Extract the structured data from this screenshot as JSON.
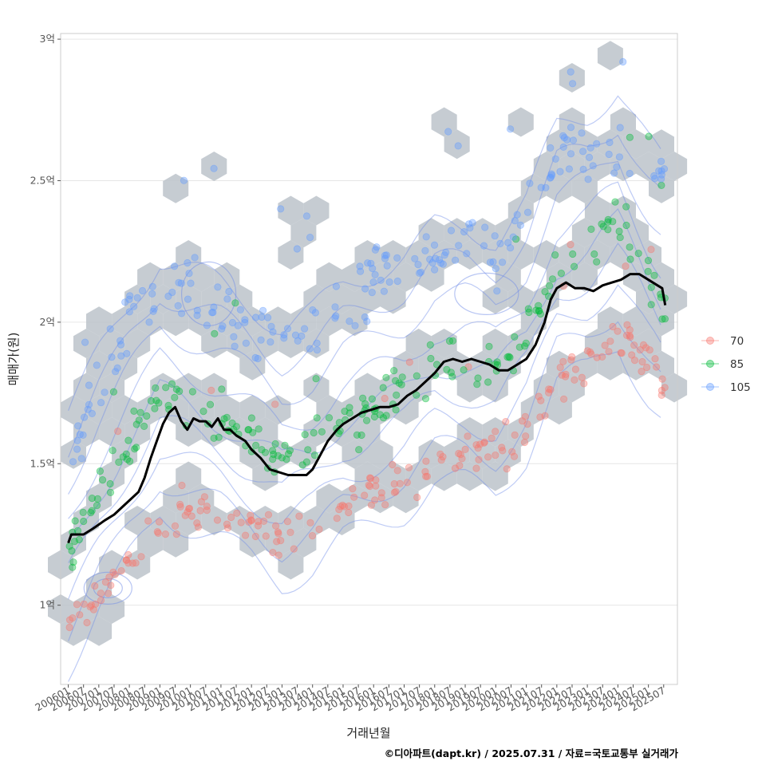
{
  "chart_data": {
    "type": "scatter",
    "title": "",
    "xlabel": "거래년월",
    "ylabel": "매매가(원)",
    "caption": "©디아파트(dapt.kr) / 2025.07.31 / 자료=국토교통부 실거래가",
    "x_tick_labels": [
      "200601",
      "200607",
      "200701",
      "200707",
      "200801",
      "200807",
      "200901",
      "200907",
      "201001",
      "201007",
      "201101",
      "201107",
      "201201",
      "201207",
      "201301",
      "201307",
      "201401",
      "201407",
      "201501",
      "201507",
      "201601",
      "201607",
      "201701",
      "201707",
      "201801",
      "201807",
      "201901",
      "201907",
      "202001",
      "202007",
      "202101",
      "202107",
      "202201",
      "202207",
      "202301",
      "202307",
      "202401",
      "202407",
      "202501",
      "202507"
    ],
    "x_range_years": [
      2005.75,
      2025.95
    ],
    "y_ticks": [
      {
        "value": 1.0,
        "label": "1억"
      },
      {
        "value": 1.5,
        "label": "1.5억"
      },
      {
        "value": 2.0,
        "label": "2억"
      },
      {
        "value": 2.5,
        "label": "2.5억"
      },
      {
        "value": 3.0,
        "label": "3억"
      }
    ],
    "y_range": [
      0.72,
      3.02
    ],
    "y_unit": "억원",
    "legend": {
      "position": "right",
      "entries": [
        {
          "label": "70",
          "color": "#F8766D"
        },
        {
          "label": "85",
          "color": "#00BA38"
        },
        {
          "label": "105",
          "color": "#619CFF"
        }
      ]
    },
    "series": [
      {
        "name": "70",
        "color": "#F8766D",
        "trend": [
          [
            2006.0,
            0.95
          ],
          [
            2007.0,
            1.0
          ],
          [
            2008.0,
            1.18
          ],
          [
            2009.0,
            1.3
          ],
          [
            2010.0,
            1.35
          ],
          [
            2011.0,
            1.33
          ],
          [
            2012.0,
            1.28
          ],
          [
            2013.0,
            1.22
          ],
          [
            2014.0,
            1.25
          ],
          [
            2015.0,
            1.35
          ],
          [
            2016.0,
            1.42
          ],
          [
            2017.0,
            1.45
          ],
          [
            2018.0,
            1.5
          ],
          [
            2019.0,
            1.52
          ],
          [
            2020.0,
            1.55
          ],
          [
            2021.0,
            1.6
          ],
          [
            2022.0,
            1.8
          ],
          [
            2023.0,
            1.85
          ],
          [
            2024.0,
            1.95
          ],
          [
            2025.0,
            1.88
          ],
          [
            2025.6,
            1.75
          ]
        ],
        "spread": 0.08
      },
      {
        "name": "85",
        "color": "#00BA38",
        "trend": [
          [
            2006.0,
            1.2
          ],
          [
            2007.0,
            1.4
          ],
          [
            2008.0,
            1.58
          ],
          [
            2009.0,
            1.75
          ],
          [
            2010.0,
            1.7
          ],
          [
            2011.0,
            1.65
          ],
          [
            2012.0,
            1.58
          ],
          [
            2013.0,
            1.5
          ],
          [
            2014.0,
            1.55
          ],
          [
            2015.0,
            1.65
          ],
          [
            2016.0,
            1.7
          ],
          [
            2017.0,
            1.75
          ],
          [
            2018.0,
            1.85
          ],
          [
            2019.0,
            1.85
          ],
          [
            2020.0,
            1.82
          ],
          [
            2021.0,
            1.95
          ],
          [
            2022.0,
            2.2
          ],
          [
            2023.0,
            2.25
          ],
          [
            2024.0,
            2.35
          ],
          [
            2025.0,
            2.15
          ],
          [
            2025.6,
            2.05
          ]
        ],
        "spread": 0.09
      },
      {
        "name": "105",
        "color": "#619CFF",
        "trend": [
          [
            2006.0,
            1.5
          ],
          [
            2007.0,
            1.8
          ],
          [
            2008.0,
            2.0
          ],
          [
            2009.0,
            2.15
          ],
          [
            2010.0,
            2.1
          ],
          [
            2011.0,
            2.05
          ],
          [
            2012.0,
            1.98
          ],
          [
            2013.0,
            1.95
          ],
          [
            2014.0,
            1.95
          ],
          [
            2015.0,
            2.05
          ],
          [
            2016.0,
            2.15
          ],
          [
            2017.0,
            2.2
          ],
          [
            2018.0,
            2.25
          ],
          [
            2019.0,
            2.3
          ],
          [
            2020.0,
            2.2
          ],
          [
            2021.0,
            2.35
          ],
          [
            2022.0,
            2.6
          ],
          [
            2023.0,
            2.6
          ],
          [
            2024.0,
            2.62
          ],
          [
            2025.0,
            2.55
          ],
          [
            2025.6,
            2.5
          ]
        ],
        "spread": 0.11
      }
    ],
    "median_line": {
      "name": "median",
      "color": "#000000",
      "points": [
        [
          2006.0,
          1.22
        ],
        [
          2006.1,
          1.25
        ],
        [
          2006.5,
          1.25
        ],
        [
          2006.8,
          1.27
        ],
        [
          2007.2,
          1.3
        ],
        [
          2007.5,
          1.32
        ],
        [
          2007.8,
          1.35
        ],
        [
          2008.0,
          1.37
        ],
        [
          2008.3,
          1.4
        ],
        [
          2008.5,
          1.45
        ],
        [
          2008.7,
          1.52
        ],
        [
          2008.9,
          1.58
        ],
        [
          2009.1,
          1.64
        ],
        [
          2009.3,
          1.68
        ],
        [
          2009.5,
          1.7
        ],
        [
          2009.7,
          1.65
        ],
        [
          2009.9,
          1.62
        ],
        [
          2010.1,
          1.66
        ],
        [
          2010.3,
          1.65
        ],
        [
          2010.5,
          1.65
        ],
        [
          2010.7,
          1.63
        ],
        [
          2010.9,
          1.66
        ],
        [
          2011.1,
          1.62
        ],
        [
          2011.3,
          1.62
        ],
        [
          2011.5,
          1.6
        ],
        [
          2011.8,
          1.58
        ],
        [
          2012.0,
          1.55
        ],
        [
          2012.3,
          1.52
        ],
        [
          2012.6,
          1.48
        ],
        [
          2012.9,
          1.47
        ],
        [
          2013.2,
          1.46
        ],
        [
          2013.5,
          1.46
        ],
        [
          2013.8,
          1.46
        ],
        [
          2014.0,
          1.48
        ],
        [
          2014.2,
          1.52
        ],
        [
          2014.5,
          1.58
        ],
        [
          2014.8,
          1.62
        ],
        [
          2015.0,
          1.64
        ],
        [
          2015.3,
          1.66
        ],
        [
          2015.6,
          1.68
        ],
        [
          2015.9,
          1.69
        ],
        [
          2016.2,
          1.7
        ],
        [
          2016.5,
          1.7
        ],
        [
          2016.8,
          1.71
        ],
        [
          2017.1,
          1.74
        ],
        [
          2017.4,
          1.76
        ],
        [
          2017.7,
          1.79
        ],
        [
          2018.0,
          1.82
        ],
        [
          2018.3,
          1.86
        ],
        [
          2018.6,
          1.87
        ],
        [
          2018.9,
          1.86
        ],
        [
          2019.2,
          1.87
        ],
        [
          2019.5,
          1.86
        ],
        [
          2019.8,
          1.85
        ],
        [
          2020.1,
          1.83
        ],
        [
          2020.4,
          1.83
        ],
        [
          2020.7,
          1.85
        ],
        [
          2021.0,
          1.87
        ],
        [
          2021.3,
          1.92
        ],
        [
          2021.6,
          2.0
        ],
        [
          2021.8,
          2.08
        ],
        [
          2022.0,
          2.12
        ],
        [
          2022.3,
          2.14
        ],
        [
          2022.6,
          2.12
        ],
        [
          2022.9,
          2.12
        ],
        [
          2023.2,
          2.11
        ],
        [
          2023.5,
          2.13
        ],
        [
          2023.8,
          2.14
        ],
        [
          2024.1,
          2.15
        ],
        [
          2024.4,
          2.17
        ],
        [
          2024.7,
          2.17
        ],
        [
          2025.0,
          2.15
        ],
        [
          2025.3,
          2.13
        ],
        [
          2025.45,
          2.12
        ],
        [
          2025.55,
          2.06
        ]
      ]
    }
  }
}
